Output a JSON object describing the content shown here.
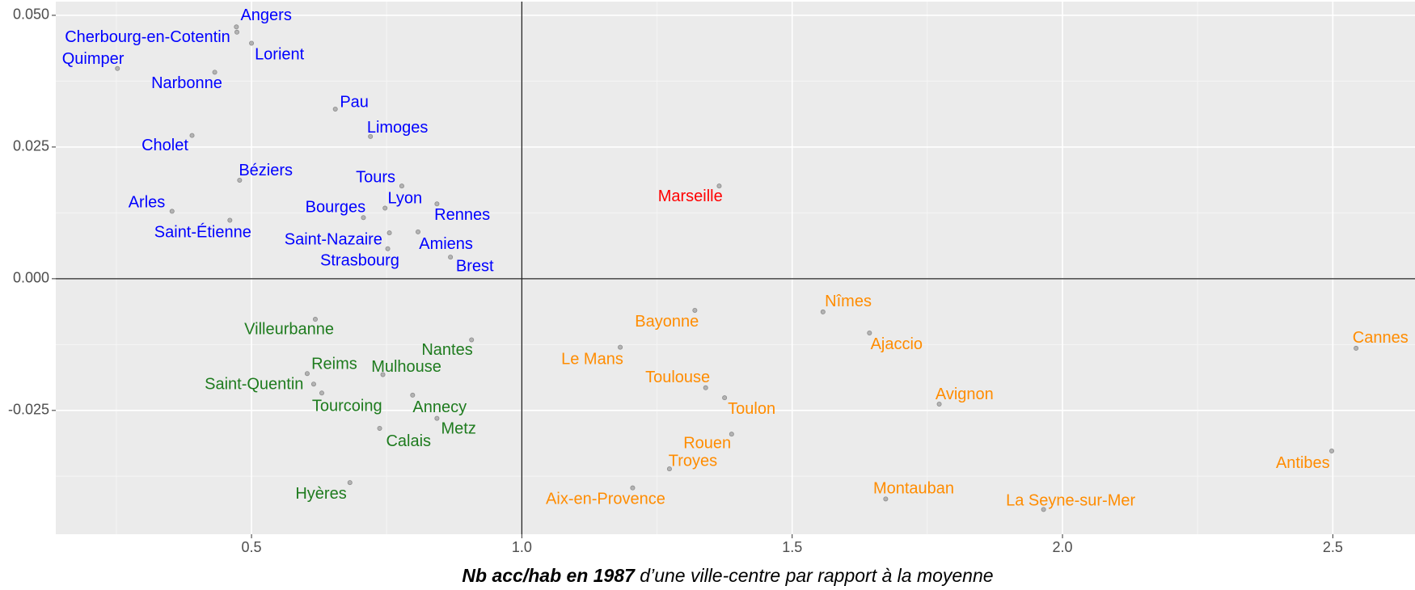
{
  "chart_data": {
    "type": "scatter",
    "xlabel": {
      "bold": "Nb acc/hab en 1987",
      "rest": " d’une ville-centre par rapport à la moyenne"
    },
    "xlim": [
      0.138,
      2.652
    ],
    "ylim": [
      -0.0485,
      0.0526
    ],
    "xticks": [
      0.5,
      {
        "value": 1.0,
        "label": "1.0"
      },
      1.5,
      {
        "value": 2.0,
        "label": "2.0"
      },
      2.5
    ],
    "yticks": [
      {
        "value": 0.05,
        "label": "0.050"
      },
      {
        "value": 0.025,
        "label": "0.025"
      },
      {
        "value": 0,
        "label": "0.000"
      },
      {
        "value": -0.025,
        "label": "-0.025"
      }
    ],
    "grid": true,
    "reference_lines": {
      "x": 1.0,
      "y": 0
    },
    "series": [
      {
        "color": "#0000ff",
        "labels": [
          "Angers",
          "Cherbourg-en-Cotentin",
          "Lorient",
          "Quimper",
          "Narbonne",
          "Pau",
          "Limoges",
          "Cholet",
          "Béziers",
          "Tours",
          "Arles",
          "Saint-Étienne",
          "Lyon",
          "Rennes",
          "Bourges",
          "Saint-Nazaire",
          "Amiens",
          "Strasbourg",
          "Brest"
        ],
        "x": [
          0.472,
          0.473,
          0.5,
          0.252,
          0.432,
          0.655,
          0.72,
          0.39,
          0.478,
          0.778,
          0.353,
          0.46,
          0.747,
          0.843,
          0.707,
          0.755,
          0.808,
          0.752,
          0.868
        ],
        "values": [
          0.0478,
          0.0468,
          0.0447,
          0.0399,
          0.0392,
          0.0322,
          0.027,
          0.0272,
          0.0187,
          0.0176,
          0.0128,
          0.0111,
          0.0134,
          0.0142,
          0.0116,
          0.0087,
          0.0089,
          0.0057,
          0.0041
        ]
      },
      {
        "color": "#ff0000",
        "labels": [
          "Marseille"
        ],
        "x": [
          1.365
        ],
        "values": [
          0.0176
        ]
      },
      {
        "color": "#1e7b1e",
        "labels": [
          "Villeurbanne",
          "Nantes",
          "Reims",
          "Mulhouse",
          "Saint-Quentin",
          "Tourcoing",
          "Annecy",
          "Metz",
          "Calais",
          "Hyères"
        ],
        "x": [
          0.618,
          0.907,
          0.603,
          0.743,
          0.615,
          0.63,
          0.798,
          0.843,
          0.737,
          0.682
        ],
        "values": [
          -0.0077,
          -0.0116,
          -0.018,
          -0.0182,
          -0.02,
          -0.0217,
          -0.0221,
          -0.0265,
          -0.0284,
          -0.0387
        ]
      },
      {
        "color": "#ff8c00",
        "labels": [
          "Bayonne",
          "Nîmes",
          "Le Mans",
          "Ajaccio",
          "Cannes",
          "Toulouse",
          "Toulon",
          "Avignon",
          "Rouen",
          "Troyes",
          "Antibes",
          "Aix-en-Provence",
          "Montauban",
          "La Seyne-sur-Mer"
        ],
        "x": [
          1.32,
          1.557,
          1.182,
          1.643,
          2.543,
          1.34,
          1.375,
          1.772,
          1.388,
          1.273,
          2.498,
          1.205,
          1.673,
          1.965
        ],
        "values": [
          -0.006,
          -0.0063,
          -0.013,
          -0.0103,
          -0.0132,
          -0.0207,
          -0.0226,
          -0.0238,
          -0.0295,
          -0.0361,
          -0.0327,
          -0.0397,
          -0.0418,
          -0.0438
        ]
      }
    ]
  }
}
